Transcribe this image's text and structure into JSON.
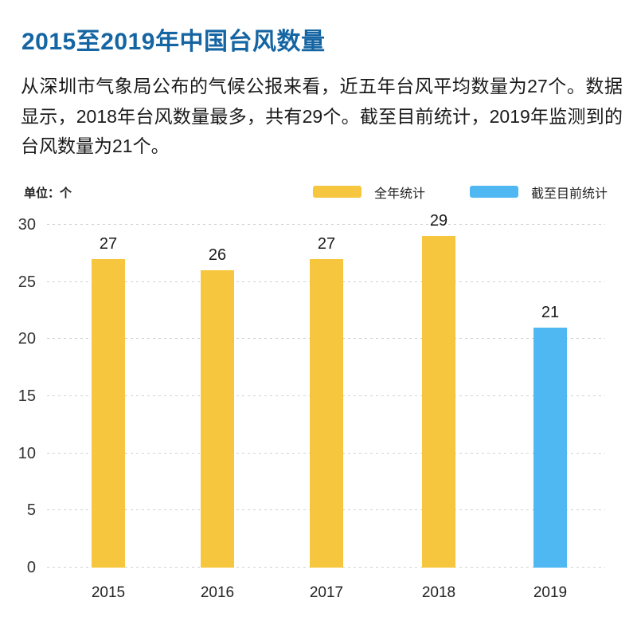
{
  "header": {
    "title": "2015至2019年中国台风数量",
    "title_color": "#1565A3"
  },
  "intro": {
    "text": "从深圳市气象局公布的气候公报来看，近五年台风平均数量为27个。数据显示，2018年台风数量最多，共有29个。截至目前统计，2019年监测到的台风数量为21个。"
  },
  "chart_data": {
    "type": "bar",
    "title": "2015至2019年中国台风数量",
    "unit_label": "单位：个",
    "categories": [
      "2015",
      "2016",
      "2017",
      "2018",
      "2019"
    ],
    "series": [
      {
        "name": "全年统计",
        "color": "#F7C63F",
        "values": [
          27,
          26,
          27,
          29,
          null
        ]
      },
      {
        "name": "截至目前统计",
        "color": "#4FB7F2",
        "values": [
          null,
          null,
          null,
          null,
          21
        ]
      }
    ],
    "ylim": [
      0,
      30
    ],
    "yticks": [
      0,
      5,
      10,
      15,
      20,
      25,
      30
    ],
    "xlabel": "",
    "ylabel": "个",
    "grid": "horizontal-dotted",
    "gridline_color": "#d2d2d2",
    "legend_position": "top-right",
    "value_labels": "above-bars"
  }
}
